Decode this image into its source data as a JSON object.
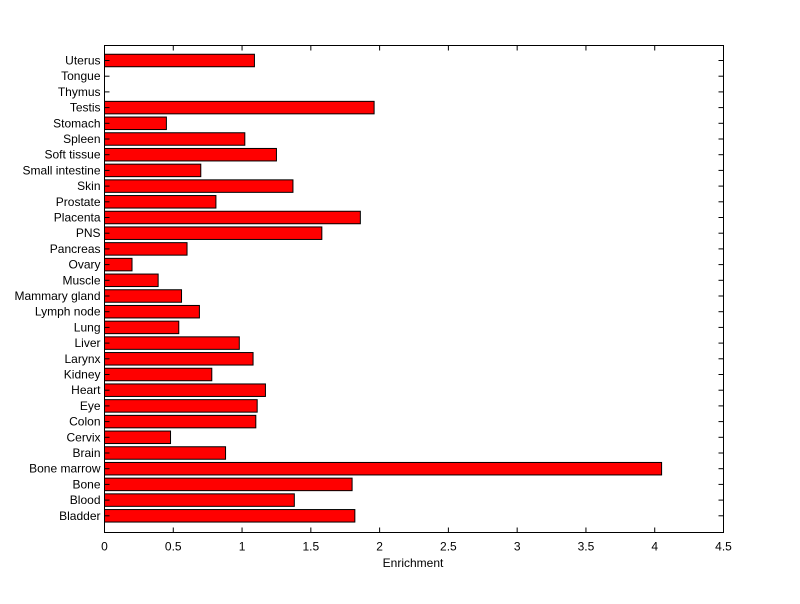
{
  "chart_data": {
    "type": "bar",
    "orientation": "horizontal",
    "categories": [
      "Uterus",
      "Tongue",
      "Thymus",
      "Testis",
      "Stomach",
      "Spleen",
      "Soft tissue",
      "Small intestine",
      "Skin",
      "Prostate",
      "Placenta",
      "PNS",
      "Pancreas",
      "Ovary",
      "Muscle",
      "Mammary gland",
      "Lymph node",
      "Lung",
      "Liver",
      "Larynx",
      "Kidney",
      "Heart",
      "Eye",
      "Colon",
      "Cervix",
      "Brain",
      "Bone marrow",
      "Bone",
      "Blood",
      "Bladder"
    ],
    "values": [
      1.09,
      0,
      0,
      1.96,
      0.45,
      1.02,
      1.25,
      0.7,
      1.37,
      0.81,
      1.86,
      1.58,
      0.6,
      0.2,
      0.39,
      0.56,
      0.69,
      0.54,
      0.98,
      1.08,
      0.78,
      1.17,
      1.11,
      1.1,
      0.48,
      0.88,
      4.05,
      1.8,
      1.38,
      1.82
    ],
    "title": "",
    "xlabel": "Enrichment",
    "ylabel": "",
    "xlim": [
      0,
      4.5
    ],
    "xticks": [
      "0",
      "0.5",
      "1",
      "1.5",
      "2",
      "2.5",
      "3",
      "3.5",
      "4",
      "4.5"
    ],
    "bar_color": "#ff0000",
    "edge_color": "#000000",
    "grid": false,
    "legend": "none"
  }
}
